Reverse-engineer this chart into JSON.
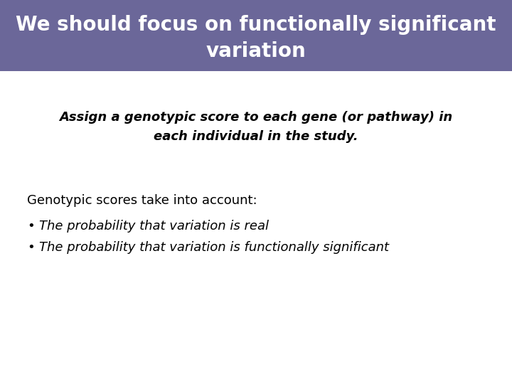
{
  "title_line1": "We should focus on functionally significant",
  "title_line2": "variation",
  "title_bg_color": "#6B6799",
  "title_text_color": "#FFFFFF",
  "body_bg_color": "#FFFFFF",
  "subtitle_line1": "Assign a genotypic score to each gene (or pathway) in",
  "subtitle_line2": "each individual in the study.",
  "subtitle_color": "#000000",
  "section_header": "Genotypic scores take into account:",
  "section_header_color": "#000000",
  "bullet_points": [
    "The probability that variation is real",
    "The probability that variation is functionally significant"
  ],
  "bullet_color": "#000000",
  "title_fontsize": 20,
  "subtitle_fontsize": 13,
  "section_fontsize": 13,
  "bullet_fontsize": 13
}
